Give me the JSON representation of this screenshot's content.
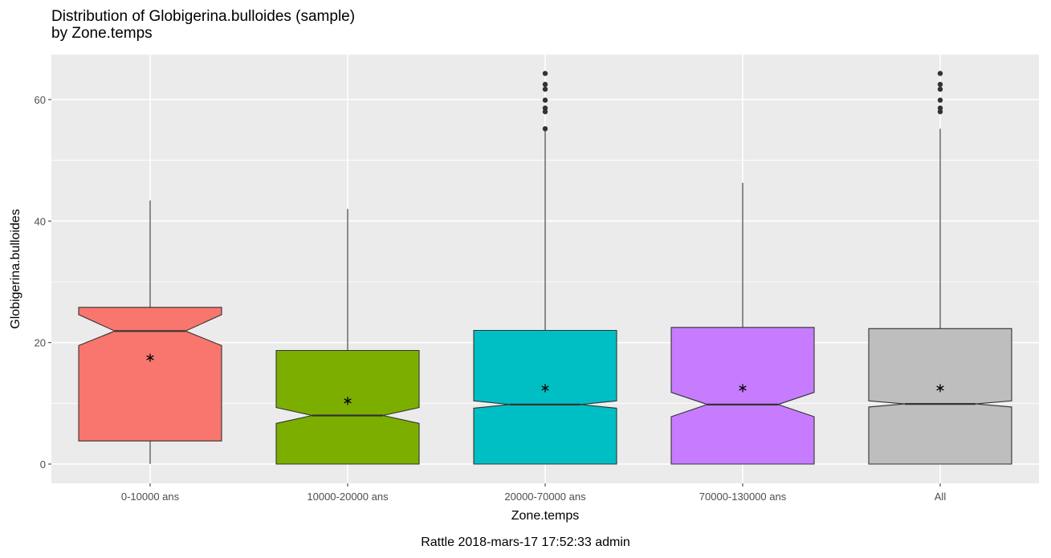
{
  "chart_data": {
    "type": "boxplot",
    "title": [
      "Distribution of Globigerina.bulloides (sample)",
      "by Zone.temps"
    ],
    "xlabel": "Zone.temps",
    "ylabel": "Globigerina.bulloides",
    "caption": "Rattle 2018-mars-17 17:52:33 admin",
    "ylim": [
      -3,
      68
    ],
    "yticks": [
      0,
      20,
      40,
      60
    ],
    "grid": true,
    "notched": true,
    "mean_marker": "*",
    "categories": [
      "0-10000 ans",
      "10000-20000 ans",
      "20000-70000 ans",
      "70000-130000 ans",
      "All"
    ],
    "boxes": [
      {
        "category": "0-10000 ans",
        "color": "#F8766D",
        "whisker_low": 0,
        "q1": 3.8,
        "median": 21.9,
        "q3": 25.8,
        "whisker_high": 43.4,
        "notch_low": 19.5,
        "notch_high": 24.6,
        "mean": 17.5,
        "outliers": []
      },
      {
        "category": "10000-20000 ans",
        "color": "#7CAE00",
        "whisker_low": 0,
        "q1": 0,
        "median": 8.0,
        "q3": 18.7,
        "whisker_high": 42.0,
        "notch_low": 6.7,
        "notch_high": 9.3,
        "mean": 10.4,
        "outliers": []
      },
      {
        "category": "20000-70000 ans",
        "color": "#00BFC4",
        "whisker_low": 0,
        "q1": 0,
        "median": 9.8,
        "q3": 22.0,
        "whisker_high": 54.8,
        "notch_low": 9.2,
        "notch_high": 10.4,
        "mean": 12.5,
        "outliers": [
          55.2,
          58.0,
          58.6,
          59.9,
          61.7,
          62.5,
          64.3
        ]
      },
      {
        "category": "70000-130000 ans",
        "color": "#C77CFF",
        "whisker_low": 0,
        "q1": 0,
        "median": 9.8,
        "q3": 22.5,
        "whisker_high": 46.3,
        "notch_low": 7.8,
        "notch_high": 11.8,
        "mean": 12.5,
        "outliers": []
      },
      {
        "category": "All",
        "color": "#BEBEBE",
        "whisker_low": 0,
        "q1": 0,
        "median": 9.9,
        "q3": 22.3,
        "whisker_high": 55.2,
        "notch_low": 9.4,
        "notch_high": 10.4,
        "mean": 12.5,
        "outliers": [
          58.0,
          58.6,
          59.9,
          61.7,
          62.5,
          64.3
        ]
      }
    ]
  }
}
